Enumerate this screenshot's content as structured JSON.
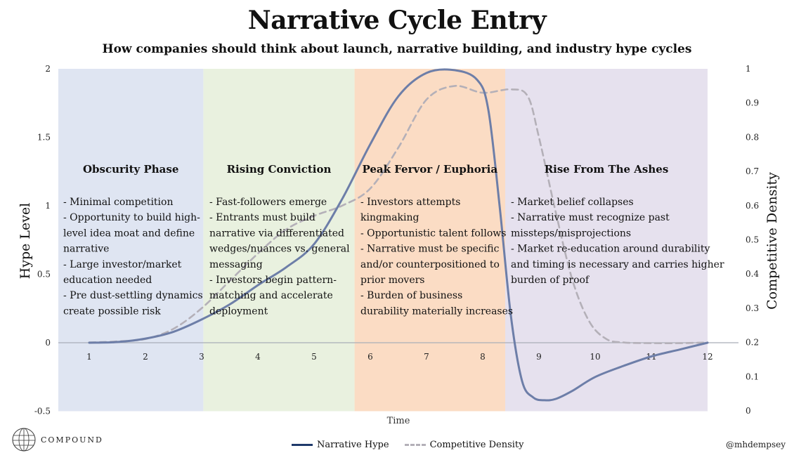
{
  "header": {
    "title": "Narrative Cycle Entry",
    "subtitle": "How companies should think about launch, narrative building, and industry hype cycles"
  },
  "colors": {
    "hype_line": "#6d7ea8",
    "density_line": "#b4b0b8",
    "zero_line": "#a9aeb8",
    "phase_bg": [
      "#dfe5f2",
      "#e9f1df",
      "#fbdcc4",
      "#e6e1ee"
    ]
  },
  "chart_data": {
    "type": "line",
    "title": "Narrative Cycle Entry",
    "subtitle": "How companies should think about launch, narrative building, and industry hype cycles",
    "xlabel": "Time",
    "ylabel": "Hype Level",
    "y2label": "Competitive Density",
    "xlim": [
      0,
      12
    ],
    "ylim": [
      -0.5,
      2
    ],
    "y2lim": [
      0,
      1
    ],
    "x_ticks": [
      "1",
      "2",
      "3",
      "4",
      "5",
      "6",
      "7",
      "8",
      "9",
      "10",
      "11",
      "12"
    ],
    "y_ticks": [
      "-0.5",
      "0",
      "0.5",
      "1",
      "1.5",
      "2"
    ],
    "y2_ticks": [
      "0",
      "0.1",
      "0.2",
      "0.3",
      "0.4",
      "0.5",
      "0.6",
      "0.7",
      "0.8",
      "0.9",
      "1"
    ],
    "grid": false,
    "legend_position": "bottom",
    "series": [
      {
        "name": "Narrative Hype",
        "axis": "left",
        "style": "solid",
        "x": [
          1,
          1.5,
          2,
          2.5,
          3,
          3.5,
          4,
          4.5,
          5,
          5.5,
          6,
          6.5,
          7,
          7.5,
          7.9,
          8.1,
          8.3,
          8.5,
          8.7,
          8.9,
          9.1,
          9.3,
          9.6,
          10,
          10.5,
          11,
          11.5,
          12
        ],
        "values": [
          0,
          0.005,
          0.03,
          0.08,
          0.17,
          0.28,
          0.42,
          0.55,
          0.72,
          1.05,
          1.45,
          1.8,
          1.97,
          1.99,
          1.92,
          1.7,
          1.0,
          0.2,
          -0.28,
          -0.4,
          -0.42,
          -0.41,
          -0.35,
          -0.25,
          -0.17,
          -0.1,
          -0.05,
          0
        ]
      },
      {
        "name": "Competitive Density",
        "axis": "right",
        "style": "dashed",
        "x": [
          1,
          1.5,
          2,
          2.5,
          3,
          3.5,
          4,
          4.5,
          5,
          5.5,
          6,
          6.5,
          7,
          7.5,
          8,
          8.5,
          8.8,
          9,
          9.3,
          9.6,
          9.9,
          10.2,
          10.5,
          11,
          11.5,
          12
        ],
        "values": [
          0.2,
          0.203,
          0.21,
          0.24,
          0.3,
          0.38,
          0.46,
          0.53,
          0.57,
          0.6,
          0.65,
          0.77,
          0.91,
          0.95,
          0.93,
          0.94,
          0.92,
          0.8,
          0.58,
          0.38,
          0.26,
          0.21,
          0.2,
          0.198,
          0.198,
          0.2
        ]
      }
    ],
    "phases": [
      {
        "title": "Obscurity Phase",
        "x_start": 0.45,
        "x_end": 3.03,
        "lines": [
          "- Minimal competition",
          "- Opportunity to build high-",
          "level idea moat and define",
          "narrative",
          "- Large investor/market",
          "education needed",
          "- Pre dust-settling dynamics",
          "create possible risk"
        ]
      },
      {
        "title": "Rising Conviction",
        "x_start": 3.03,
        "x_end": 5.72,
        "lines": [
          "- Fast-followers emerge",
          "- Entrants must build",
          "narrative via differentiated",
          "wedges/nuances vs. general",
          "messaging",
          "- Investors begin pattern-",
          "matching and accelerate",
          "deployment"
        ]
      },
      {
        "title": "Peak Fervor / Euphoria",
        "x_start": 5.72,
        "x_end": 8.4,
        "lines": [
          "- Investors attempts",
          "kingmaking",
          "- Opportunistic talent follows",
          "- Narrative must be specific",
          "and/or counterpositioned to",
          "prior movers",
          "- Burden of business",
          "durability materially increases"
        ]
      },
      {
        "title": "Rise From The Ashes",
        "x_start": 8.4,
        "x_end": 12.0,
        "lines": [
          "- Market belief collapses",
          "- Narrative must recognize past",
          "missteps/misprojections",
          "- Market re-education around durability",
          "and timing is necessary and carries higher",
          "burden of proof"
        ]
      }
    ]
  },
  "legend": {
    "hype": "Narrative Hype",
    "density": "Competitive Density"
  },
  "logo": {
    "text": "COMPOUND"
  },
  "footer": {
    "handle": "@mhdempsey"
  }
}
